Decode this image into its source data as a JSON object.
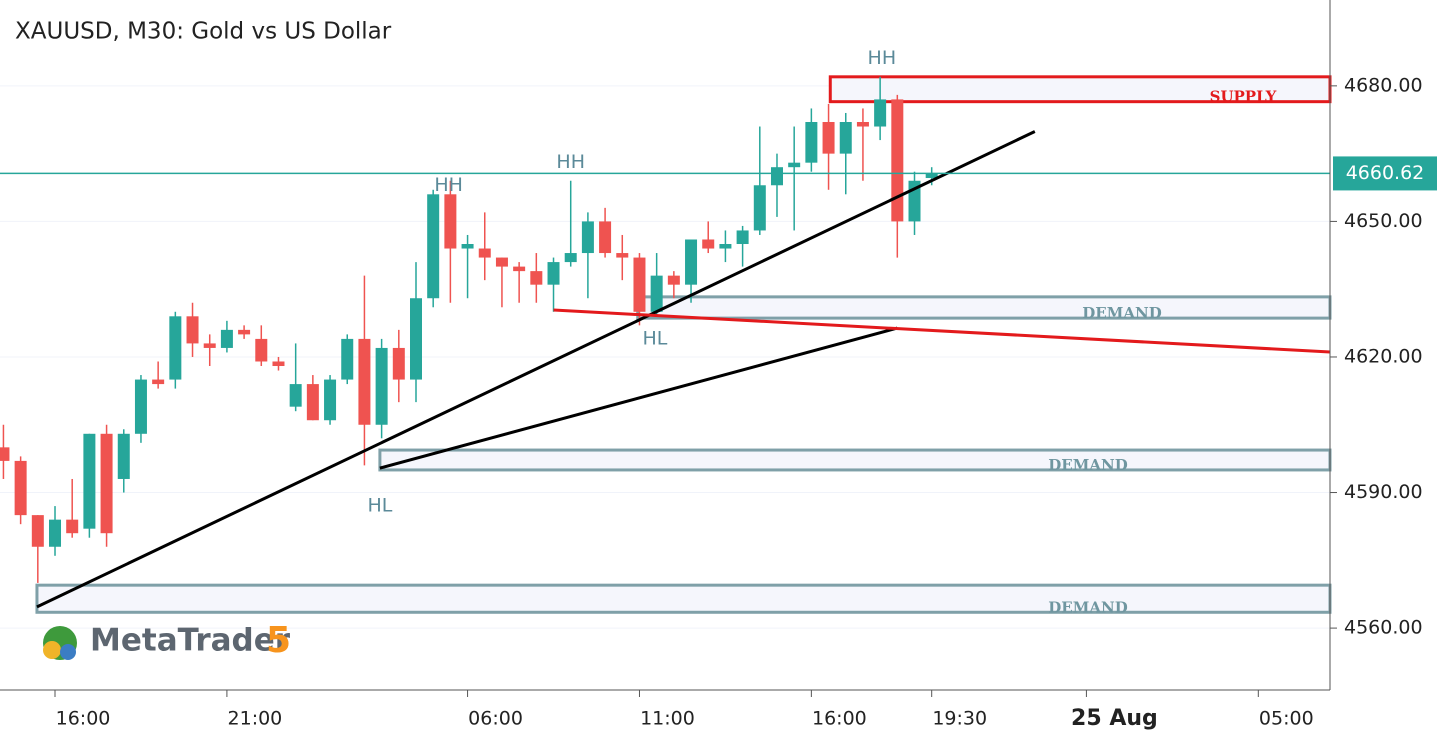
{
  "chart_data": {
    "type": "candlestick",
    "title": "XAUUSD, M30: Gold vs US Dollar",
    "categories": [
      null,
      null,
      null,
      "16:00",
      null,
      null,
      null,
      null,
      null,
      null,
      null,
      null,
      null,
      "21:00",
      null,
      null,
      null,
      null,
      null,
      null,
      null,
      null,
      null,
      null,
      null,
      null,
      null,
      "06:00",
      null,
      null,
      null,
      null,
      null,
      null,
      null,
      null,
      null,
      "11:00",
      null,
      null,
      null,
      null,
      null,
      null,
      null,
      null,
      null,
      "16:00",
      null,
      null,
      null,
      null,
      null,
      null,
      "19:30",
      null,
      null,
      null,
      null,
      null,
      null,
      null,
      null,
      "25 Aug",
      null,
      null,
      null,
      null,
      null,
      null,
      null,
      null,
      null,
      "05:00",
      null,
      null,
      null
    ],
    "open": [
      4600,
      4597,
      4585,
      4578,
      4584,
      4582,
      4603,
      4593,
      4603,
      4615,
      4615,
      4629,
      4623,
      4622,
      4626,
      4624,
      4619,
      4609,
      4614,
      4606,
      4615,
      4624,
      4605,
      4622,
      4615,
      4633,
      4656,
      4644,
      4644,
      4642,
      4640,
      4639,
      4636,
      4641,
      4643,
      4650,
      4643,
      4642,
      4630,
      4638,
      4636,
      4646,
      4644,
      4645,
      4648,
      4658,
      4662,
      4663,
      4672,
      4665,
      4672,
      4671,
      4677,
      4650,
      4659.6,
      null,
      null,
      null,
      null,
      null,
      null,
      null,
      null,
      null,
      null,
      null,
      null,
      null,
      null,
      null,
      null,
      null,
      null,
      null,
      null,
      null,
      null
    ],
    "high": [
      4605,
      4598,
      4585,
      4587,
      4593,
      4603,
      4605,
      4604,
      4616,
      4619,
      4630,
      4632,
      4625,
      4628,
      4627,
      4627,
      4620,
      4623,
      4616,
      4616,
      4625,
      4638,
      4624,
      4626,
      4641,
      4657,
      4659,
      4647,
      4652,
      4642,
      4641,
      4643,
      4642,
      4659,
      4652,
      4653,
      4647,
      4643,
      4643,
      4639,
      4646,
      4650,
      4648,
      4649,
      4671,
      4665,
      4671,
      4675,
      4676,
      4674,
      4675,
      4682,
      4678,
      4661,
      4662,
      null,
      null,
      null,
      null,
      null,
      null,
      null,
      null,
      null,
      null,
      null,
      null,
      null,
      null,
      null,
      null,
      null,
      null,
      null,
      null,
      null,
      null
    ],
    "low": [
      4593,
      4583,
      4570,
      4576,
      4580,
      4580,
      4578,
      4590,
      4601,
      4613,
      4613,
      4620,
      4618,
      4621,
      4624,
      4618,
      4617,
      4608,
      4606,
      4605,
      4614,
      4596,
      4602,
      4610,
      4610,
      4631,
      4632,
      4633,
      4637,
      4631,
      4632,
      4632,
      4630,
      4640,
      4633,
      4642,
      4637,
      4627,
      4629,
      4633,
      4632,
      4643,
      4641,
      4640,
      4647,
      4651,
      4648,
      4661,
      4657,
      4656,
      4659,
      4668,
      4642,
      4647,
      4658,
      null,
      null,
      null,
      null,
      null,
      null,
      null,
      null,
      null,
      null,
      null,
      null,
      null,
      null,
      null,
      null,
      null,
      null,
      null,
      null,
      null,
      null
    ],
    "close": [
      4597,
      4585,
      4578,
      4584,
      4581,
      4603,
      4581,
      4603,
      4615,
      4614,
      4629,
      4623,
      4622,
      4626,
      4625,
      4619,
      4618,
      4614,
      4606,
      4615,
      4624,
      4605,
      4622,
      4615,
      4633,
      4656,
      4644,
      4645,
      4642,
      4640,
      4639,
      4636,
      4641,
      4643,
      4650,
      4643,
      4642,
      4630,
      4638,
      4636,
      4646,
      4644,
      4645,
      4648,
      4658,
      4662,
      4663,
      4672,
      4665,
      4672,
      4671,
      4677,
      4650,
      4659,
      4660.6,
      null,
      null,
      null,
      null,
      null,
      null,
      null,
      null,
      null,
      null,
      null,
      null,
      null,
      null,
      null,
      null,
      null,
      null,
      null,
      null,
      null,
      null
    ],
    "up_color": "#26a69a",
    "down_color": "#ef5350",
    "ylim": [
      4546.3,
      4699.0
    ],
    "yticks": [
      {
        "value": 4560,
        "label": "4560.00"
      },
      {
        "value": 4590,
        "label": "4590.00"
      },
      {
        "value": 4620,
        "label": "4620.00"
      },
      {
        "value": 4650,
        "label": "4650.00"
      },
      {
        "value": 4680,
        "label": "4680.00"
      }
    ],
    "grid": true,
    "last_price": 4660.62,
    "last_price_color": "#26a69a",
    "zones": [
      {
        "label": "SUPPLY",
        "low": 4676.5,
        "high": 4682,
        "start": 48.1,
        "color": "#e31a1c"
      },
      {
        "label": "DEMAND",
        "low": 4628.6,
        "high": 4633.3,
        "start": 36.9,
        "color": "#7fa0a8"
      },
      {
        "label": "DEMAND",
        "low": 4595,
        "high": 4599.4,
        "start": 21.9,
        "color": "#7fa0a8"
      },
      {
        "label": "DEMAND",
        "low": 4563.5,
        "high": 4569.5,
        "start": 1.95,
        "color": "#7fa0a8"
      }
    ],
    "lines": [
      {
        "x": [
          1.95,
          60
        ],
        "y": [
          4564.7,
          4669.9
        ],
        "color": "#000000"
      },
      {
        "x": [
          21.9,
          52
        ],
        "y": [
          4595.4,
          4626.4
        ],
        "color": "#000000"
      },
      {
        "x": [
          32,
          77.2
        ],
        "y": [
          4630.4,
          4621.1
        ],
        "color": "#e31a1c"
      }
    ],
    "annotations": [
      {
        "text": "HH",
        "x": 51.1,
        "y": 4686
      },
      {
        "text": "HH",
        "x": 25.9,
        "y": 4658
      },
      {
        "text": "HH",
        "x": 33,
        "y": 4663
      },
      {
        "text": "HL",
        "x": 37.9,
        "y": 4624
      },
      {
        "text": "HL",
        "x": 21.9,
        "y": 4587
      }
    ],
    "logo": {
      "name": "MetaTrader",
      "version": "5"
    }
  }
}
